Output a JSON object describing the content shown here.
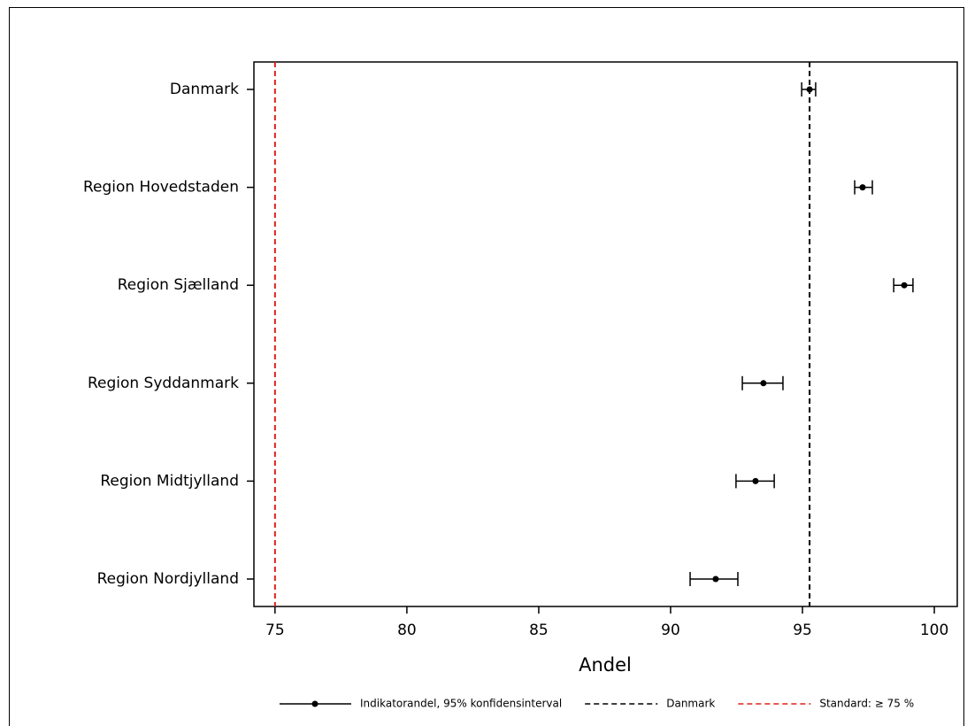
{
  "chart_data": {
    "type": "forest",
    "categories": [
      "Danmark",
      "Region Hovedstaden",
      "Region Sjælland",
      "Region Syddanmark",
      "Region Midtjylland",
      "Region Nordjylland"
    ],
    "series": [
      {
        "name": "Indikatorandel, 95% konfidensinterval",
        "color": "#000000",
        "values": [
          95.27,
          97.28,
          98.86,
          93.52,
          93.22,
          91.71
        ],
        "lower": [
          94.97,
          96.98,
          98.46,
          92.72,
          92.48,
          90.74
        ],
        "upper": [
          95.5,
          97.65,
          99.19,
          94.26,
          93.93,
          92.55
        ]
      }
    ],
    "reference_lines": [
      {
        "name": "Danmark",
        "value": 95.27,
        "color": "#000000"
      },
      {
        "name": "Standard: ≥ 75 %",
        "value": 75,
        "color": "#e0201b"
      }
    ],
    "xlabel": "Andel",
    "xlim": [
      74.2,
      100.87
    ],
    "xticks": [
      75,
      80,
      85,
      90,
      95,
      100
    ],
    "legend": "bottom"
  }
}
